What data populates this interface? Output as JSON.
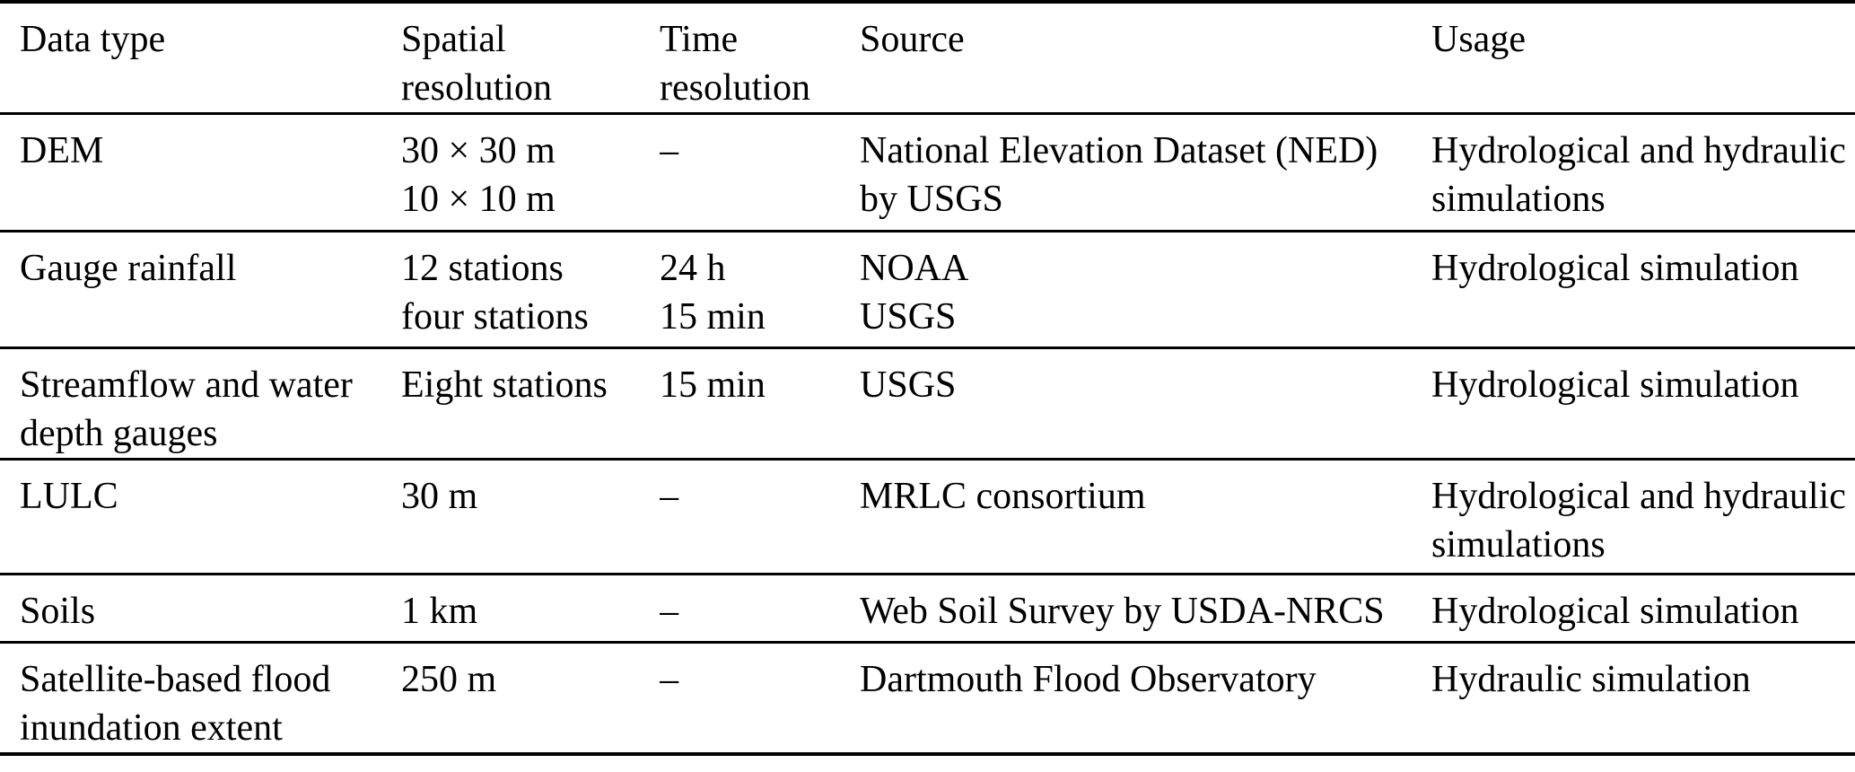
{
  "table": {
    "text_color": "#000000",
    "background_color": "#ffffff",
    "rule_color": "#000000",
    "columns": [
      {
        "id": "data-type",
        "label": "Data type",
        "lines": [
          "Data type"
        ]
      },
      {
        "id": "spatial-resolution",
        "label": "Spatial resolution",
        "lines": [
          "Spatial",
          "resolution"
        ]
      },
      {
        "id": "time-resolution",
        "label": "Time resolution",
        "lines": [
          "Time",
          "resolution"
        ]
      },
      {
        "id": "source",
        "label": "Source",
        "lines": [
          "Source"
        ]
      },
      {
        "id": "usage",
        "label": "Usage",
        "lines": [
          "Usage"
        ]
      }
    ],
    "rows": [
      {
        "id": "dem",
        "cells": [
          [
            "DEM"
          ],
          [
            "30 × 30 m",
            "10 × 10 m"
          ],
          [
            "–"
          ],
          [
            "National Elevation Dataset (NED)",
            "by USGS"
          ],
          [
            "Hydrological and hydraulic",
            "simulations"
          ]
        ]
      },
      {
        "id": "gauge-rainfall",
        "cells": [
          [
            "Gauge rainfall"
          ],
          [
            "12 stations",
            "four stations"
          ],
          [
            "24 h",
            "15 min"
          ],
          [
            "NOAA",
            "USGS"
          ],
          [
            "Hydrological simulation"
          ]
        ]
      },
      {
        "id": "streamflow-water-depth-gauges",
        "cells": [
          [
            "Streamflow and water",
            "depth gauges"
          ],
          [
            "Eight stations"
          ],
          [
            "15 min"
          ],
          [
            "USGS"
          ],
          [
            "Hydrological simulation"
          ]
        ]
      },
      {
        "id": "lulc",
        "cells": [
          [
            "LULC"
          ],
          [
            "30 m"
          ],
          [
            "–"
          ],
          [
            "MRLC consortium"
          ],
          [
            "Hydrological and hydraulic",
            "simulations"
          ]
        ]
      },
      {
        "id": "soils",
        "cells": [
          [
            "Soils"
          ],
          [
            "1 km"
          ],
          [
            "–"
          ],
          [
            "Web Soil Survey by USDA-NRCS"
          ],
          [
            "Hydrological simulation"
          ]
        ]
      },
      {
        "id": "satellite-flood-inundation-extent",
        "cells": [
          [
            "Satellite-based flood",
            "inundation extent"
          ],
          [
            "250 m"
          ],
          [
            "–"
          ],
          [
            "Dartmouth Flood Observatory"
          ],
          [
            "Hydraulic simulation"
          ]
        ]
      }
    ]
  }
}
